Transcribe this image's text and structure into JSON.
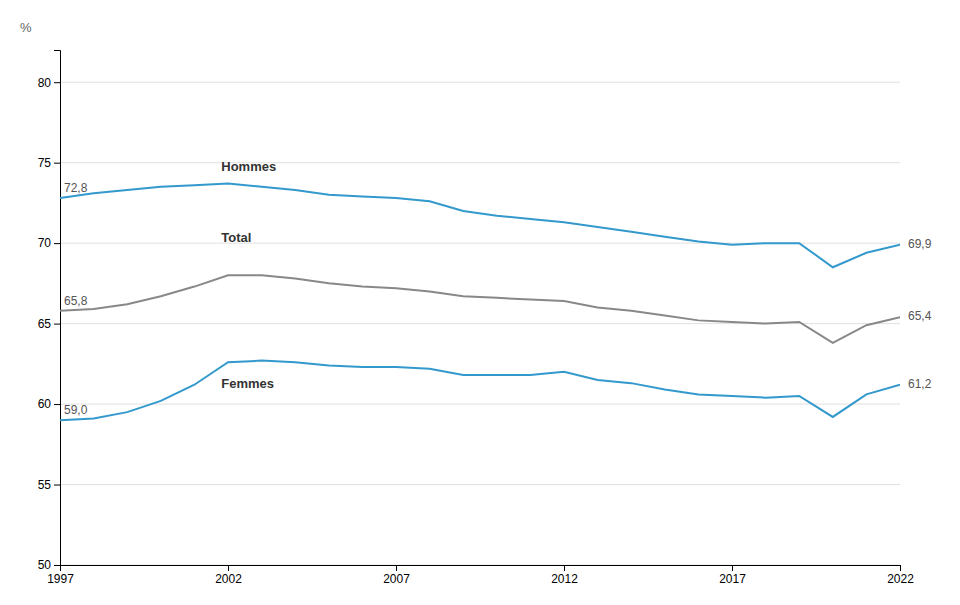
{
  "chart_data": {
    "type": "line",
    "ylabel": "%",
    "x": [
      1997,
      1998,
      1999,
      2000,
      2001,
      2002,
      2003,
      2004,
      2005,
      2006,
      2007,
      2008,
      2009,
      2010,
      2011,
      2012,
      2013,
      2014,
      2015,
      2016,
      2017,
      2018,
      2019,
      2020,
      2021,
      2022
    ],
    "series": [
      {
        "name": "Hommes",
        "color": "#3399cc",
        "values": [
          72.8,
          73.1,
          73.3,
          73.5,
          73.6,
          73.7,
          73.5,
          73.3,
          73.0,
          72.9,
          72.8,
          72.6,
          72.0,
          71.7,
          71.5,
          71.3,
          71.0,
          70.7,
          70.4,
          70.1,
          69.9,
          70.0,
          70.0,
          68.5,
          69.4,
          69.9
        ],
        "value_labels": [
          "72,8",
          null,
          null,
          null,
          null,
          null,
          null,
          null,
          null,
          null,
          null,
          null,
          null,
          null,
          null,
          null,
          null,
          null,
          null,
          null,
          null,
          null,
          null,
          null,
          null,
          "69,9"
        ]
      },
      {
        "name": "Total",
        "color": "#888888",
        "values": [
          65.8,
          65.9,
          66.2,
          66.7,
          67.3,
          68.0,
          68.0,
          67.8,
          67.5,
          67.3,
          67.2,
          67.0,
          66.7,
          66.6,
          66.5,
          66.4,
          66.0,
          65.8,
          65.5,
          65.2,
          65.1,
          65.0,
          65.1,
          63.8,
          64.9,
          65.4
        ],
        "value_labels": [
          "65,8",
          null,
          null,
          null,
          null,
          null,
          null,
          null,
          null,
          null,
          null,
          null,
          null,
          null,
          null,
          null,
          null,
          null,
          null,
          null,
          null,
          null,
          null,
          null,
          null,
          "65,4"
        ]
      },
      {
        "name": "Femmes",
        "color": "#3399cc",
        "values": [
          59.0,
          59.1,
          59.5,
          60.2,
          61.2,
          62.6,
          62.7,
          62.6,
          62.4,
          62.3,
          62.3,
          62.2,
          61.8,
          61.8,
          61.8,
          62.0,
          61.5,
          61.3,
          60.9,
          60.6,
          60.5,
          60.4,
          60.5,
          59.2,
          60.6,
          61.2
        ],
        "value_labels": [
          "59,0",
          null,
          null,
          null,
          null,
          null,
          null,
          null,
          null,
          null,
          null,
          null,
          null,
          null,
          null,
          null,
          null,
          null,
          null,
          null,
          null,
          null,
          null,
          null,
          null,
          "61,2"
        ]
      }
    ],
    "annotations": [
      {
        "text": "Hommes",
        "x": 2001.8,
        "y": 74.7
      },
      {
        "text": "Total",
        "x": 2001.8,
        "y": 70.3
      },
      {
        "text": "Femmes",
        "x": 2001.8,
        "y": 61.2
      }
    ],
    "xlim": [
      1997,
      2022
    ],
    "xticks": [
      1997,
      2002,
      2007,
      2012,
      2017,
      2022
    ],
    "ylim": [
      50,
      82
    ],
    "yticks": [
      50,
      55,
      60,
      65,
      70,
      75,
      80
    ],
    "grid": true
  }
}
